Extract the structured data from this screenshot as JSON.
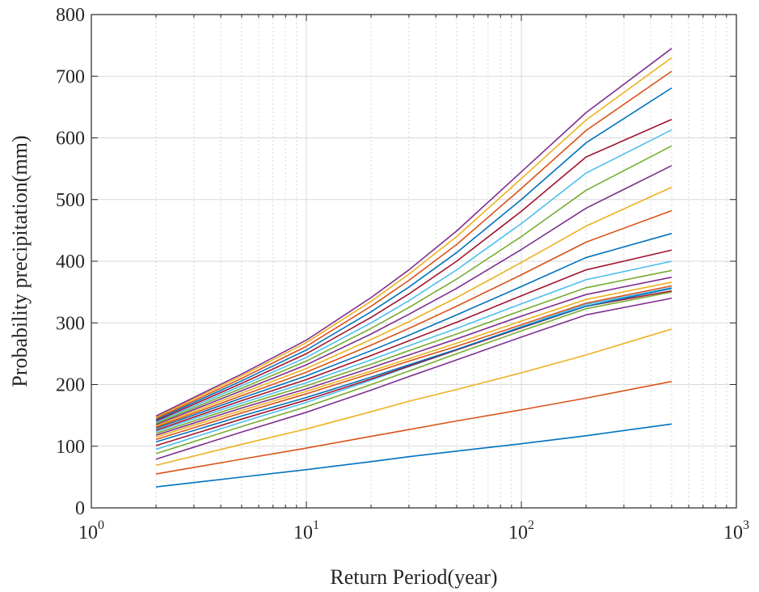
{
  "chart_data": {
    "type": "line",
    "xscale": "log",
    "xlim": [
      1,
      1000
    ],
    "ylim": [
      0,
      800
    ],
    "xlabel": "Return Period(year)",
    "ylabel": "Probability precipitation(mm)",
    "x_tick_labels": [
      {
        "base": "10",
        "exp": "0"
      },
      {
        "base": "10",
        "exp": "1"
      },
      {
        "base": "10",
        "exp": "2"
      },
      {
        "base": "10",
        "exp": "3"
      }
    ],
    "y_tick_labels": [
      "0",
      "100",
      "200",
      "300",
      "400",
      "500",
      "600",
      "700",
      "800"
    ],
    "grid": true,
    "minor_grid": true,
    "x": [
      2,
      5,
      10,
      20,
      30,
      50,
      100,
      200,
      500
    ],
    "series": [
      {
        "color": "#0072BD",
        "values": [
          34,
          50,
          62,
          75,
          83,
          92,
          104,
          117,
          136
        ]
      },
      {
        "color": "#D95319",
        "values": [
          55,
          79,
          97,
          116,
          127,
          141,
          159,
          178,
          205
        ]
      },
      {
        "color": "#EDB120",
        "values": [
          69,
          103,
          128,
          156,
          173,
          192,
          219,
          248,
          290
        ]
      },
      {
        "color": "#7E2F8E",
        "values": [
          79,
          123,
          155,
          191,
          213,
          240,
          277,
          313,
          340
        ]
      },
      {
        "color": "#77AC30",
        "values": [
          88,
          132,
          164,
          200,
          222,
          250,
          287,
          323,
          350
        ]
      },
      {
        "color": "#4DBEEE",
        "values": [
          95,
          139,
          171,
          207,
          229,
          256,
          294,
          330,
          357
        ]
      },
      {
        "color": "#A2142F",
        "values": [
          101,
          144,
          175,
          209,
          230,
          256,
          292,
          327,
          352
        ]
      },
      {
        "color": "#0072BD",
        "values": [
          107,
          149,
          179,
          212,
          232,
          257,
          293,
          327,
          356
        ]
      },
      {
        "color": "#D95319",
        "values": [
          111,
          154,
          185,
          218,
          238,
          262,
          297,
          332,
          360
        ]
      },
      {
        "color": "#EDB120",
        "values": [
          115,
          158,
          189,
          222,
          242,
          267,
          303,
          338,
          366
        ]
      },
      {
        "color": "#7E2F8E",
        "values": [
          118,
          162,
          193,
          227,
          248,
          274,
          311,
          346,
          374
        ]
      },
      {
        "color": "#77AC30",
        "values": [
          121,
          166,
          198,
          233,
          255,
          282,
          320,
          357,
          385
        ]
      },
      {
        "color": "#4DBEEE",
        "values": [
          124,
          170,
          203,
          240,
          263,
          291,
          331,
          370,
          400
        ]
      },
      {
        "color": "#A2142F",
        "values": [
          126,
          174,
          208,
          247,
          271,
          301,
          344,
          386,
          418
        ]
      },
      {
        "color": "#0072BD",
        "values": [
          129,
          178,
          214,
          255,
          280,
          313,
          359,
          406,
          445
        ]
      },
      {
        "color": "#D95319",
        "values": [
          131,
          182,
          220,
          264,
          291,
          327,
          378,
          431,
          482
        ]
      },
      {
        "color": "#EDB120",
        "values": [
          133,
          186,
          226,
          273,
          302,
          341,
          398,
          457,
          520
        ]
      },
      {
        "color": "#7E2F8E",
        "values": [
          135,
          190,
          232,
          282,
          314,
          356,
          419,
          486,
          555
        ]
      },
      {
        "color": "#77AC30",
        "values": [
          137,
          194,
          238,
          291,
          325,
          371,
          440,
          515,
          587
        ]
      },
      {
        "color": "#4DBEEE",
        "values": [
          139,
          198,
          244,
          300,
          336,
          386,
          461,
          543,
          613
        ]
      },
      {
        "color": "#A2142F",
        "values": [
          141,
          202,
          250,
          309,
          347,
          400,
          481,
          569,
          630
        ]
      },
      {
        "color": "#0072BD",
        "values": [
          143,
          206,
          256,
          318,
          358,
          414,
          500,
          592,
          681
        ]
      },
      {
        "color": "#D95319",
        "values": [
          145,
          210,
          262,
          327,
          369,
          427,
          518,
          612,
          708
        ]
      },
      {
        "color": "#EDB120",
        "values": [
          147,
          214,
          268,
          335,
          379,
          440,
          534,
          629,
          730
        ]
      },
      {
        "color": "#7E2F8E",
        "values": [
          149,
          217,
          272,
          341,
          386,
          449,
          545,
          641,
          745
        ]
      }
    ]
  }
}
